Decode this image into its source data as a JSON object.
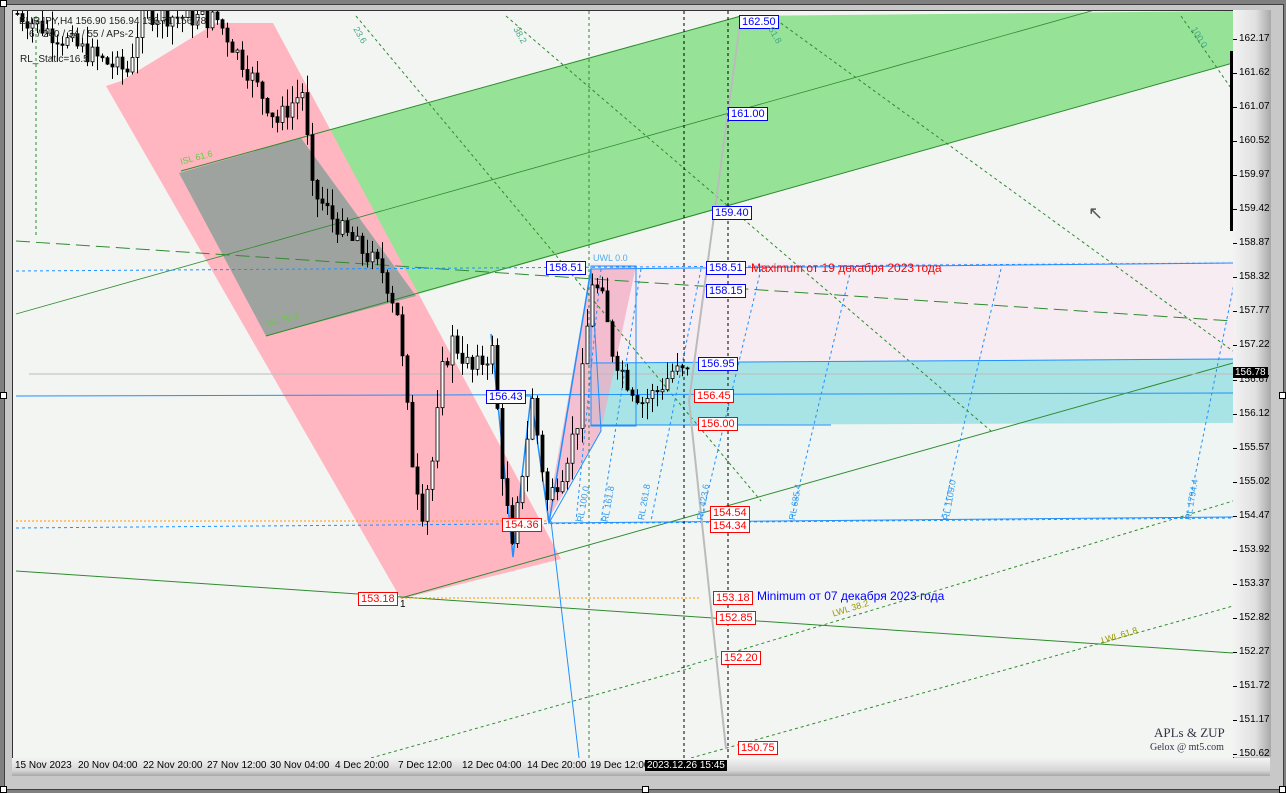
{
  "header": {
    "symbol_line": "EURJPY,H4  156.90 156.94 156.71 156.78",
    "indicator_line": "6 / 240 / 34 / 55 / APs-2",
    "static_line": "RL_Static=16.5"
  },
  "price_axis": {
    "ticks": [
      "162.17",
      "161.62",
      "161.07",
      "160.52",
      "159.97",
      "159.42",
      "158.87",
      "158.32",
      "157.77",
      "157.22",
      "156.67",
      "156.12",
      "155.57",
      "155.02",
      "154.47",
      "153.92",
      "153.37",
      "152.82",
      "152.27",
      "151.72",
      "151.17",
      "150.62"
    ],
    "current_price": "156.78"
  },
  "time_axis": {
    "ticks": [
      "15 Nov 2023",
      "20 Nov 04:00",
      "22 Nov 20:00",
      "27 Nov 12:00",
      "30 Nov 04:00",
      "4 Dec 20:00",
      "7 Dec 12:00",
      "12 Dec 04:00",
      "14 Dec 20:00",
      "19 Dec 12:00"
    ],
    "cursor_time": "2023.12.26 15:45"
  },
  "price_labels": {
    "right_blue": [
      "162.50",
      "161.00",
      "159.40",
      "158.51",
      "158.15",
      "156.95"
    ],
    "right_red": [
      "156.45",
      "156.00",
      "154.54",
      "154.34",
      "153.18",
      "152.85",
      "152.20",
      "150.75"
    ],
    "left_high": "158.51",
    "left_mid": "156.43",
    "left_low": "154.36",
    "left_min": "153.18"
  },
  "annotations": {
    "maximum": "Maximum от 19 декабря 2023 года",
    "minimum": "Minimum от  07 декабря 2023 года",
    "point_1": "1",
    "brand": "APLs & ZUP",
    "author": "Gelox @ mt5.com"
  },
  "fib_labels": {
    "top": [
      "23.6",
      "38.2",
      "61.8",
      "100.0"
    ],
    "isl": [
      "ISL 61.6",
      "ISL 38.2"
    ],
    "uwl": "UWL 0.0",
    "lwl": [
      "LWL 38.2",
      "LWL 61.8"
    ],
    "rl": [
      "RL 100.0",
      "RL 161.8",
      "RL 261.8",
      "RL 423.6",
      "RL 685.4",
      "RL 1109.0",
      "RL 1794.4"
    ]
  },
  "colors": {
    "bull_channel": "#ffb6c1",
    "green_channel": "#90e090",
    "cyan_zone": "#a8e4e6",
    "label_blue": "#0000ff",
    "label_red": "#ff0000"
  },
  "price_path": [
    {
      "bar": 0,
      "close": 162.6
    },
    {
      "bar": 17,
      "close": 161.83
    },
    {
      "bar": 22,
      "close": 161.67
    },
    {
      "bar": 25,
      "close": 162.6
    },
    {
      "bar": 40,
      "close": 162.5
    },
    {
      "bar": 45,
      "close": 161.83
    },
    {
      "bar": 52,
      "close": 160.86
    },
    {
      "bar": 57,
      "close": 161.35
    },
    {
      "bar": 59,
      "close": 159.73
    },
    {
      "bar": 65,
      "close": 159.08
    },
    {
      "bar": 73,
      "close": 158.44
    },
    {
      "bar": 76,
      "close": 157.79
    },
    {
      "bar": 79,
      "close": 155.37
    },
    {
      "bar": 81,
      "close": 154.56
    },
    {
      "bar": 83,
      "close": 155.37
    },
    {
      "bar": 85,
      "close": 156.82
    },
    {
      "bar": 87,
      "close": 157.31
    },
    {
      "bar": 91,
      "close": 156.82
    },
    {
      "bar": 95,
      "close": 157.15
    },
    {
      "bar": 97,
      "close": 155.21
    },
    {
      "bar": 99,
      "close": 153.91
    },
    {
      "bar": 101,
      "close": 155.21
    },
    {
      "bar": 103,
      "close": 156.34
    },
    {
      "bar": 106,
      "close": 154.72
    },
    {
      "bar": 109,
      "close": 155.21
    },
    {
      "bar": 112,
      "close": 156.01
    },
    {
      "bar": 115,
      "close": 158.28
    },
    {
      "bar": 117,
      "close": 157.96
    },
    {
      "bar": 119,
      "close": 157.15
    },
    {
      "bar": 122,
      "close": 156.66
    },
    {
      "bar": 125,
      "close": 156.34
    },
    {
      "bar": 128,
      "close": 156.5
    },
    {
      "bar": 131,
      "close": 156.82
    },
    {
      "bar": 134,
      "close": 156.78
    }
  ]
}
